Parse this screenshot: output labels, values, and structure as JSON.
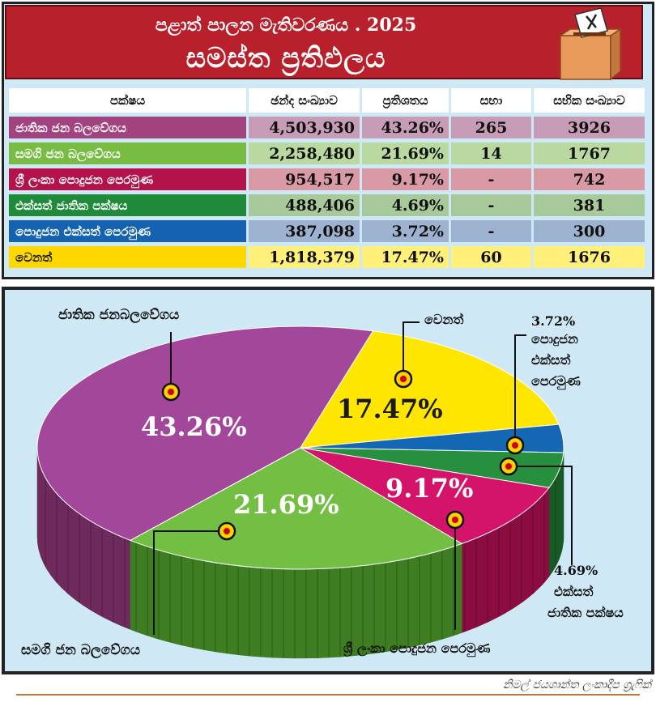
{
  "header": {
    "title_line1": "පළාත් පාලන මැතිවරණය  . 2025",
    "title_line2": "සමස්ත ප්‍රතිඵලය"
  },
  "table": {
    "headers": [
      "පක්ෂය",
      "ඡන්ද සංඛ්‍යාව",
      "ප්‍රතිශතය",
      "සභා",
      "සභික සංඛ්‍යාව"
    ],
    "rows": [
      {
        "party": "ජාතික ජන බලවේගය",
        "votes": "4,503,930",
        "pct": "43.26%",
        "councils": "265",
        "members": "3926",
        "row_color": "#a2437f",
        "cell_color": "#c79cb6"
      },
      {
        "party": "සමගි ජන බලවේගය",
        "votes": "2,258,480",
        "pct": "21.69%",
        "councils": "14",
        "members": "1767",
        "row_color": "#78bc43",
        "cell_color": "#bad9a0"
      },
      {
        "party": "ශ්‍රී ලංකා පොදුජන පෙරමුණ",
        "votes": "954,517",
        "pct": "9.17%",
        "councils": "-",
        "members": "742",
        "row_color": "#b3124a",
        "cell_color": "#d99aa6"
      },
      {
        "party": "එක්සත් ජාතික පක්ෂය",
        "votes": "488,406",
        "pct": "4.69%",
        "councils": "-",
        "members": "381",
        "row_color": "#1f8b3a",
        "cell_color": "#a8c99a"
      },
      {
        "party": "පොදුජන එක්සත් පෙරමුණ",
        "votes": "387,098",
        "pct": "3.72%",
        "councils": "-",
        "members": "300",
        "row_color": "#1563b0",
        "cell_color": "#9cb2cf"
      },
      {
        "party": "වෙනත්",
        "votes": "1,818,379",
        "pct": "17.47%",
        "councils": "60",
        "members": "1676",
        "row_color": "#ffd800",
        "cell_color": "#fff07a"
      }
    ]
  },
  "chart_data": {
    "type": "pie",
    "slices": [
      {
        "name": "ජාතික ජනබලවේගය",
        "value": 43.26,
        "label": "43.26%",
        "color": "#a2479a",
        "side_color": "#6e2a5c"
      },
      {
        "name": "වෙනත්",
        "value": 17.47,
        "label": "17.47%",
        "color": "#ffe600",
        "side_color": "#b3a200"
      },
      {
        "name": "පොදුජන එක්සත් පෙරමුණ",
        "value": 3.72,
        "label": "3.72%",
        "color": "#1468b3",
        "side_color": "#0c3f6c"
      },
      {
        "name": "එක්සත් ජාතික පක්ෂය",
        "value": 4.69,
        "label": "4.69%",
        "color": "#27903f",
        "side_color": "#175a26"
      },
      {
        "name": "ශ්‍රී ලංකා පොදුජන පෙරමුණ",
        "value": 9.17,
        "label": "9.17%",
        "color": "#d4136a",
        "side_color": "#8a0c40"
      },
      {
        "name": "සමගි ජන බලවේගය",
        "value": 21.69,
        "label": "21.69%",
        "color": "#72bf44",
        "side_color": "#3e7d22"
      }
    ],
    "callouts": {
      "npp": "ජාතික ජනබලවේගය",
      "other": "වෙනත්",
      "pa_pct": "3.72%",
      "pa_name_l1": "පොදුජන",
      "pa_name_l2": "එක්සත්",
      "pa_name_l3": "පෙරමුණ",
      "unp_pct": "4.69%",
      "unp_name_l1": "එක්සත්",
      "unp_name_l2": "ජාතික පක්ෂය",
      "slpp": "ශ්‍රී ලංකා පොදුජන පෙරමුණ",
      "sjb": "සමගි ජන බලවේගය"
    }
  },
  "credit": "නිමල් ජයශාන්ත ලංකාදීප ග්‍රැෆික්"
}
